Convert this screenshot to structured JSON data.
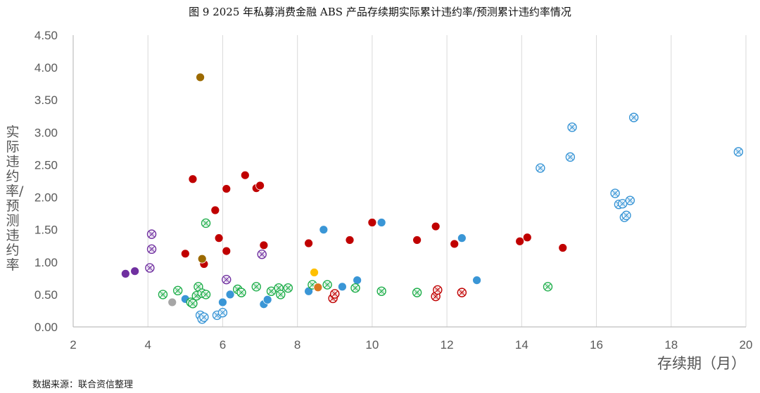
{
  "chart_data": {
    "type": "scatter",
    "title": "图 9   2025 年私募消费金融 ABS 产品存续期实际累计违约率/预测累计违约率情况",
    "xlabel": "存续期（月）",
    "ylabel": "实际违约率/预测违约率",
    "xlim": [
      2,
      20
    ],
    "ylim": [
      0,
      4.5
    ],
    "xticks": [
      "2",
      "4",
      "6",
      "8",
      "10",
      "12",
      "14",
      "16",
      "18",
      "20"
    ],
    "yticks": [
      "0.00",
      "0.50",
      "1.00",
      "1.50",
      "2.00",
      "2.50",
      "3.00",
      "3.50",
      "4.00",
      "4.50"
    ],
    "grid": "vertical",
    "legend": "none",
    "series": [
      {
        "color": "#C00000",
        "marker": "filled",
        "points": [
          [
            5.0,
            1.13
          ],
          [
            5.2,
            2.28
          ],
          [
            5.5,
            0.97
          ],
          [
            5.8,
            1.8
          ],
          [
            5.9,
            1.37
          ],
          [
            6.1,
            2.13
          ],
          [
            6.1,
            1.17
          ],
          [
            6.6,
            2.34
          ],
          [
            6.9,
            2.14
          ],
          [
            7.0,
            2.18
          ],
          [
            7.1,
            1.26
          ],
          [
            8.3,
            1.29
          ],
          [
            9.4,
            1.34
          ],
          [
            10.0,
            1.61
          ],
          [
            11.2,
            1.34
          ],
          [
            11.7,
            1.55
          ],
          [
            12.2,
            1.28
          ],
          [
            13.95,
            1.32
          ],
          [
            14.15,
            1.38
          ],
          [
            15.1,
            1.22
          ]
        ]
      },
      {
        "color": "#3A96D6",
        "marker": "filled",
        "points": [
          [
            5.0,
            0.43
          ],
          [
            6.0,
            0.38
          ],
          [
            6.2,
            0.5
          ],
          [
            7.1,
            0.35
          ],
          [
            7.2,
            0.42
          ],
          [
            8.3,
            0.55
          ],
          [
            8.7,
            1.5
          ],
          [
            9.2,
            0.62
          ],
          [
            9.6,
            0.72
          ],
          [
            10.25,
            1.61
          ],
          [
            12.4,
            1.37
          ],
          [
            12.8,
            0.72
          ]
        ]
      },
      {
        "color": "#3A96D6",
        "marker": "hollow-x",
        "points": [
          [
            5.4,
            0.18
          ],
          [
            5.45,
            0.12
          ],
          [
            5.5,
            0.15
          ],
          [
            5.85,
            0.18
          ],
          [
            6.0,
            0.22
          ],
          [
            14.5,
            2.45
          ],
          [
            15.3,
            2.62
          ],
          [
            15.35,
            3.08
          ],
          [
            16.5,
            2.06
          ],
          [
            16.6,
            1.89
          ],
          [
            16.7,
            1.9
          ],
          [
            16.75,
            1.69
          ],
          [
            16.8,
            1.72
          ],
          [
            16.9,
            1.95
          ],
          [
            17.0,
            3.23
          ],
          [
            19.8,
            2.7
          ]
        ]
      },
      {
        "color": "#1FAE4B",
        "marker": "hollow-x",
        "points": [
          [
            4.4,
            0.5
          ],
          [
            4.8,
            0.56
          ],
          [
            5.15,
            0.38
          ],
          [
            5.2,
            0.36
          ],
          [
            5.3,
            0.48
          ],
          [
            5.35,
            0.62
          ],
          [
            5.45,
            0.52
          ],
          [
            5.55,
            0.5
          ],
          [
            5.55,
            1.6
          ],
          [
            6.4,
            0.58
          ],
          [
            6.5,
            0.53
          ],
          [
            6.9,
            0.62
          ],
          [
            7.3,
            0.55
          ],
          [
            7.5,
            0.6
          ],
          [
            7.55,
            0.5
          ],
          [
            7.75,
            0.6
          ],
          [
            8.4,
            0.65
          ],
          [
            8.8,
            0.65
          ],
          [
            9.55,
            0.6
          ],
          [
            10.25,
            0.55
          ],
          [
            11.2,
            0.53
          ],
          [
            14.7,
            0.62
          ]
        ]
      },
      {
        "color": "#C00000",
        "marker": "hollow-x",
        "points": [
          [
            8.95,
            0.44
          ],
          [
            9.0,
            0.51
          ],
          [
            11.7,
            0.47
          ],
          [
            11.75,
            0.57
          ],
          [
            12.4,
            0.53
          ]
        ]
      },
      {
        "color": "#7030A0",
        "marker": "filled",
        "points": [
          [
            3.4,
            0.82
          ],
          [
            3.65,
            0.86
          ]
        ]
      },
      {
        "color": "#7030A0",
        "marker": "hollow-x",
        "points": [
          [
            4.05,
            0.91
          ],
          [
            4.1,
            1.2
          ],
          [
            4.1,
            1.43
          ],
          [
            6.1,
            0.73
          ],
          [
            7.05,
            1.12
          ]
        ]
      },
      {
        "color": "#9C6A00",
        "marker": "filled",
        "points": [
          [
            5.4,
            3.85
          ],
          [
            5.45,
            1.05
          ]
        ]
      },
      {
        "color": "#FFC000",
        "marker": "filled",
        "points": [
          [
            8.45,
            0.84
          ]
        ]
      },
      {
        "color": "#D9761F",
        "marker": "filled",
        "points": [
          [
            8.55,
            0.61
          ]
        ]
      },
      {
        "color": "#A6A6A6",
        "marker": "filled",
        "points": [
          [
            4.65,
            0.38
          ]
        ]
      }
    ]
  },
  "source_note": "数据来源：联合资信整理"
}
